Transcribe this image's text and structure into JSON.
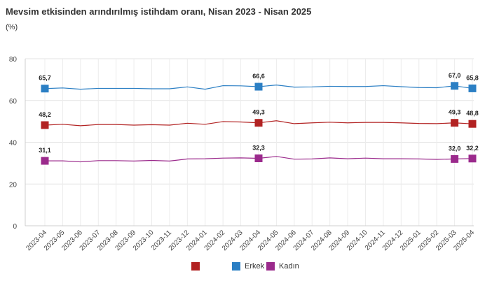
{
  "chart_data": {
    "type": "line",
    "title": "Mevsim etkisinden arındırılmış istihdam oranı, Nisan 2023 - Nisan 2025",
    "subtitle": "(%)",
    "x": [
      "2023-04",
      "2023-05",
      "2023-06",
      "2023-07",
      "2023-08",
      "2023-09",
      "2023-10",
      "2023-11",
      "2023-12",
      "2024-01",
      "2024-02",
      "2024-03",
      "2024-04",
      "2024-05",
      "2024-06",
      "2024-07",
      "2024-08",
      "2024-09",
      "2024-10",
      "2024-11",
      "2024-12",
      "2025-01",
      "2025-02",
      "2025-03",
      "2025-04"
    ],
    "ylim": [
      0,
      80
    ],
    "yticks": [
      0,
      20,
      40,
      60,
      80
    ],
    "grid": true,
    "legend_position": "bottom-center",
    "series": [
      {
        "name": "",
        "color": "#b22222",
        "values": [
          48.2,
          48.6,
          47.9,
          48.5,
          48.5,
          48.2,
          48.4,
          48.2,
          49.1,
          48.6,
          49.9,
          49.7,
          49.3,
          50.3,
          48.9,
          49.3,
          49.6,
          49.3,
          49.5,
          49.5,
          49.3,
          49.0,
          48.9,
          49.3,
          48.8
        ],
        "labels": [
          {
            "index": 0,
            "text": "48,2"
          },
          {
            "index": 12,
            "text": "49,3"
          },
          {
            "index": 23,
            "text": "49,3"
          },
          {
            "index": 24,
            "text": "48,8"
          }
        ]
      },
      {
        "name": "Erkek",
        "color": "#2b7fc4",
        "values": [
          65.7,
          66.0,
          65.4,
          65.8,
          65.8,
          65.8,
          65.6,
          65.6,
          66.5,
          65.4,
          67.1,
          67.0,
          66.6,
          67.4,
          66.4,
          66.5,
          66.8,
          66.7,
          66.7,
          67.1,
          66.6,
          66.2,
          66.1,
          67.0,
          65.8
        ],
        "labels": [
          {
            "index": 0,
            "text": "65,7"
          },
          {
            "index": 12,
            "text": "66,6"
          },
          {
            "index": 23,
            "text": "67,0"
          },
          {
            "index": 24,
            "text": "65,8"
          }
        ]
      },
      {
        "name": "Kadın",
        "color": "#9b2a8c",
        "values": [
          31.1,
          31.1,
          30.6,
          31.2,
          31.2,
          31.0,
          31.3,
          31.0,
          32.0,
          32.1,
          32.4,
          32.5,
          32.3,
          33.2,
          31.9,
          32.0,
          32.5,
          32.1,
          32.4,
          32.1,
          32.1,
          32.0,
          31.8,
          32.0,
          32.2
        ],
        "labels": [
          {
            "index": 0,
            "text": "31,1"
          },
          {
            "index": 12,
            "text": "32,3"
          },
          {
            "index": 23,
            "text": "32,0"
          },
          {
            "index": 24,
            "text": "32,2"
          }
        ]
      }
    ]
  }
}
